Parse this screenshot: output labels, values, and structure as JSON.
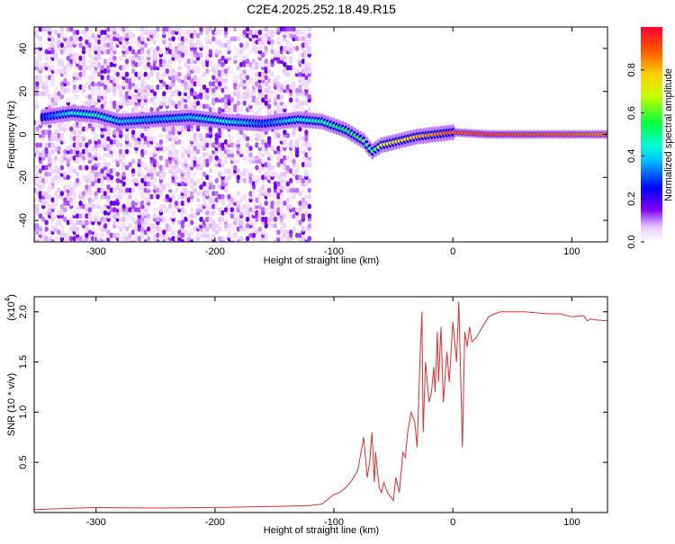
{
  "title": "C2E4.2025.252.18.49.R15",
  "colors": {
    "snr_line": "#e03030",
    "frame": "#000000",
    "background": "#ffffff"
  },
  "chart_data": [
    {
      "type": "heatmap",
      "name": "spectrogram",
      "xlabel": "Height of straight line (km)",
      "ylabel": "Frequency (Hz)",
      "xlim": [
        -352,
        130
      ],
      "ylim": [
        -50,
        50
      ],
      "xticks": [
        -300,
        -200,
        -100,
        0,
        100
      ],
      "yticks": [
        -40,
        -20,
        0,
        20,
        40
      ],
      "ridge": {
        "x": [
          -345,
          -320,
          -300,
          -280,
          -250,
          -220,
          -190,
          -160,
          -130,
          -110,
          -90,
          -75,
          -68,
          -60,
          -45,
          -30,
          -15,
          0,
          30,
          60,
          100,
          130
        ],
        "freq": [
          8,
          10,
          9,
          6,
          7,
          8,
          6,
          5,
          7,
          6,
          2,
          -3,
          -8,
          -5,
          -3,
          -1,
          0,
          1,
          0,
          0,
          0,
          0
        ],
        "amplitude": [
          0.25,
          0.45,
          0.5,
          0.4,
          0.35,
          0.4,
          0.45,
          0.3,
          0.45,
          0.5,
          0.55,
          0.6,
          0.55,
          0.7,
          0.75,
          0.8,
          0.85,
          0.9,
          0.92,
          0.9,
          0.88,
          0.85
        ]
      },
      "noise_region_x": [
        -352,
        -120
      ],
      "colorbar": {
        "label": "Normalized spectral amplitude",
        "range": [
          0,
          1
        ],
        "ticks": [
          0.0,
          0.2,
          0.4,
          0.6,
          0.8
        ],
        "tick_labels": [
          "0.0",
          "0.2",
          "0.4",
          "0.6",
          "0.8"
        ]
      }
    },
    {
      "type": "line",
      "name": "snr",
      "xlabel": "Height of straight line (km)",
      "ylabel": "SNR (10 * v/v)",
      "scale_label": "(x10",
      "scale_exponent": "4",
      "scale_close": ")",
      "xlim": [
        -352,
        130
      ],
      "ylim": [
        0,
        21500
      ],
      "xticks": [
        -300,
        -200,
        -100,
        0,
        100
      ],
      "yticks": [
        5000,
        10000,
        15000,
        20000
      ],
      "ytick_labels": [
        "0.5",
        "1.0",
        "1.5",
        "2.0"
      ],
      "series": [
        {
          "name": "SNR",
          "x": [
            -352,
            -300,
            -250,
            -200,
            -150,
            -120,
            -110,
            -100,
            -95,
            -90,
            -85,
            -80,
            -75,
            -72,
            -70,
            -68,
            -66,
            -65,
            -62,
            -60,
            -58,
            -55,
            -52,
            -50,
            -48,
            -45,
            -42,
            -40,
            -38,
            -35,
            -32,
            -30,
            -28,
            -26,
            -25,
            -23,
            -20,
            -18,
            -16,
            -15,
            -13,
            -12,
            -10,
            -8,
            -5,
            -3,
            0,
            3,
            5,
            8,
            10,
            12,
            14,
            16,
            20,
            25,
            30,
            35,
            40,
            50,
            60,
            70,
            80,
            90,
            100,
            110,
            113,
            116,
            120,
            130
          ],
          "y": [
            300,
            500,
            450,
            500,
            600,
            700,
            850,
            1800,
            2000,
            2500,
            3200,
            4200,
            7500,
            3500,
            5000,
            8000,
            3000,
            6000,
            2500,
            2000,
            3000,
            2000,
            1500,
            1200,
            3500,
            2000,
            6000,
            5500,
            8000,
            10000,
            9000,
            6500,
            14000,
            20000,
            8000,
            15000,
            11000,
            12000,
            14500,
            12000,
            18000,
            13000,
            18500,
            11000,
            16000,
            13000,
            19000,
            15000,
            21000,
            6500,
            18000,
            16500,
            18500,
            17000,
            17500,
            18500,
            19500,
            19800,
            20000,
            20000,
            20000,
            19900,
            19800,
            19800,
            19500,
            19600,
            19100,
            19300,
            19200,
            19100
          ]
        }
      ]
    }
  ]
}
